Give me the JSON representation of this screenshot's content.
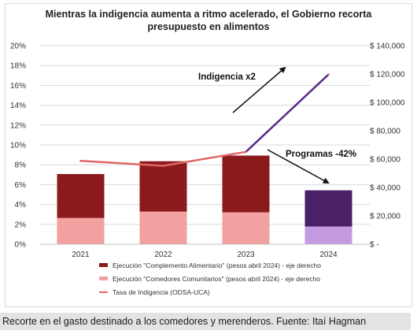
{
  "caption": "Recorte en el gasto destinado a los comedores y merenderos. Fuente: Itaí Hagman",
  "colors": {
    "complemento": "#8b1a1c",
    "complemento_2024": "#4a2066",
    "comedores": "#f2a0a0",
    "comedores_2024": "#c49ae0",
    "indigencia": "#e06666",
    "indigencia_2024": "#5b2a8c",
    "gridline": "#d9d9d9"
  },
  "chart_data": {
    "type": "bar",
    "title": "Mientras la indigencia aumenta a ritmo acelerado, el Gobierno recorta presupuesto en alimentos",
    "categories": [
      "2021",
      "2022",
      "2023",
      "2024"
    ],
    "stacked": true,
    "series": [
      {
        "name": "Ejecución \"Comedores Comunitarios\" (pesos abril 2024) - eje derecho",
        "axis": "right",
        "type": "bar",
        "values": [
          18500,
          23000,
          22500,
          12500
        ]
      },
      {
        "name": "Ejecución \"Complemento Alimentario\" (pesos abril 2024) - eje derecho",
        "axis": "right",
        "type": "bar",
        "values": [
          31000,
          35500,
          40000,
          25500
        ]
      },
      {
        "name": "Tasa de Indigencia (ODSA-UCA)",
        "axis": "left",
        "type": "line",
        "values": [
          8.4,
          7.9,
          9.3,
          17.1
        ]
      }
    ],
    "y_left": {
      "ticks": [
        "0%",
        "2%",
        "4%",
        "6%",
        "8%",
        "10%",
        "12%",
        "14%",
        "16%",
        "18%",
        "20%"
      ],
      "ylim": [
        0,
        20
      ]
    },
    "y_right": {
      "ticks": [
        "$ -",
        "$ 20,000",
        "$ 40,000",
        "$ 60,000",
        "$ 80,000",
        "$ 100,000",
        "$ 120,000",
        "$ 140,000"
      ],
      "ylim": [
        0,
        140000
      ]
    },
    "annotations": [
      {
        "text": "Indigencia x2"
      },
      {
        "text": "Programas -42%"
      }
    ],
    "grid": true,
    "legend_position": "bottom"
  }
}
